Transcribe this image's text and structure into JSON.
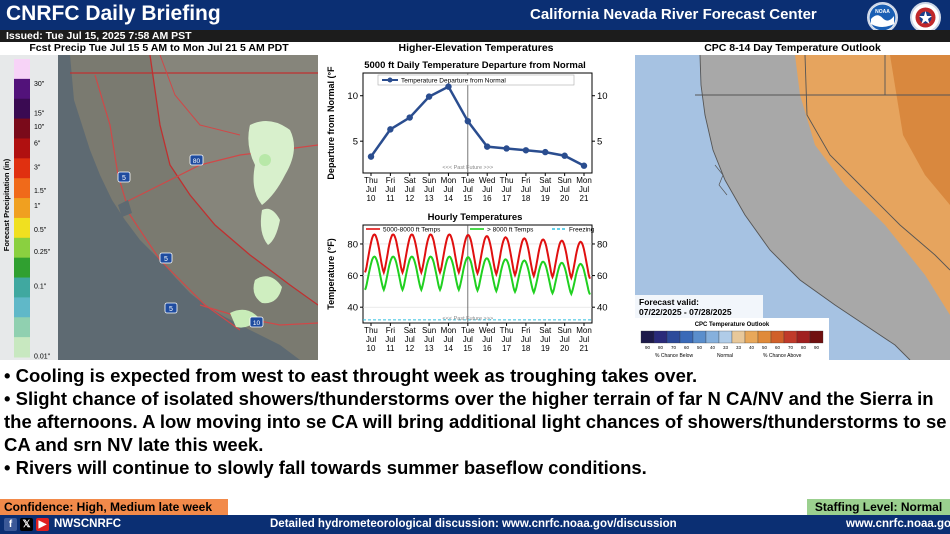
{
  "header": {
    "title": "CNRFC Daily Briefing",
    "org": "California Nevada River Forecast Center",
    "issued": "Issued: Tue Jul 15, 2025 7:58 AM PST",
    "noaa_logo_text": "NOAA"
  },
  "panels": {
    "precip_title": "Fcst Precip Tue Jul 15 5 AM to Mon Jul 21 5 AM PDT",
    "temps_title": "Higher-Elevation Temperatures",
    "cpc_title": "CPC 8-14 Day Temperature Outlook"
  },
  "precip_legend": {
    "axis_label": "Forecast Precipitation (in)",
    "ticks": [
      "30\"",
      "15\"",
      "10\"",
      "6\"",
      "3\"",
      "1.5\"",
      "1\"",
      "0.5\"",
      "0.25\"",
      "0.1\"",
      "0.01\""
    ],
    "colors": [
      "#f7d3f7",
      "#52127a",
      "#3a0a52",
      "#7a0a1a",
      "#b01010",
      "#e03010",
      "#f06a1a",
      "#f0a020",
      "#f0e020",
      "#8ad040",
      "#30a030",
      "#40a8a0",
      "#60b8c8",
      "#90d0b0",
      "#c8e8c0"
    ]
  },
  "highway_shields": [
    "5",
    "80",
    "5",
    "5",
    "10"
  ],
  "chart_data": [
    {
      "type": "line",
      "title": "5000 ft Daily Temperature Departure from Normal",
      "ylabel": "Departure from Normal (°F",
      "ylim": [
        1.5,
        12.5
      ],
      "yticks": [
        5,
        10
      ],
      "legend": "Temperature Departure from Normal",
      "annotation": "<<< Past   Future >>>",
      "categories": [
        "Thu Jul 10",
        "Fri Jul 11",
        "Sat Jul 12",
        "Sun Jul 13",
        "Mon Jul 14",
        "Tue Jul 15",
        "Wed Jul 16",
        "Thu Jul 17",
        "Fri Jul 18",
        "Sat Jul 19",
        "Sun Jul 20",
        "Mon Jul 21"
      ],
      "x_days": [
        "Thu",
        "Fri",
        "Sat",
        "Sun",
        "Mon",
        "Tue",
        "Wed",
        "Thu",
        "Fri",
        "Sat",
        "Sun",
        "Mon"
      ],
      "x_months": [
        "Jul",
        "Jul",
        "Jul",
        "Jul",
        "Jul",
        "Jul",
        "Jul",
        "Jul",
        "Jul",
        "Jul",
        "Jul",
        "Jul"
      ],
      "x_dates": [
        "10",
        "11",
        "12",
        "13",
        "14",
        "15",
        "16",
        "17",
        "18",
        "19",
        "20",
        "21"
      ],
      "values": [
        3.3,
        6.3,
        7.6,
        9.9,
        11.0,
        7.2,
        4.4,
        4.2,
        4.0,
        3.8,
        3.4,
        2.3
      ],
      "color": "#2a4d8f"
    },
    {
      "type": "line",
      "title": "Hourly Temperatures",
      "ylabel": "Temperature (°F)",
      "ylim": [
        30,
        92
      ],
      "yticks": [
        40,
        60,
        80
      ],
      "annotation": "<<< Past   Future >>>",
      "series": [
        {
          "name": "5000-8000 ft Temps",
          "color": "#e01010",
          "min": 62,
          "max": 86,
          "min_end": 58,
          "max_end": 81
        },
        {
          "name": "> 8000 ft Temps",
          "color": "#20d020",
          "min": 51,
          "max": 72,
          "min_end": 48,
          "max_end": 67
        },
        {
          "name": "Freezing",
          "color": "#30c0e0",
          "value": 32
        }
      ],
      "x_days": [
        "Thu",
        "Fri",
        "Sat",
        "Sun",
        "Mon",
        "Tue",
        "Wed",
        "Thu",
        "Fri",
        "Sat",
        "Sun",
        "Mon"
      ],
      "x_months": [
        "Jul",
        "Jul",
        "Jul",
        "Jul",
        "Jul",
        "Jul",
        "Jul",
        "Jul",
        "Jul",
        "Jul",
        "Jul",
        "Jul"
      ],
      "x_dates": [
        "10",
        "11",
        "12",
        "13",
        "14",
        "15",
        "16",
        "17",
        "18",
        "19",
        "20",
        "21"
      ]
    }
  ],
  "cpc": {
    "valid_label": "Forecast valid:",
    "valid_range": "07/22/2025 - 07/28/2025",
    "legend_title": "CPC Temperature Outlook",
    "legend_ticks": [
      "90",
      "80",
      "70",
      "60",
      "50",
      "40",
      "33",
      "33",
      "40",
      "50",
      "60",
      "70",
      "80",
      "90"
    ],
    "legend_colors": [
      "#1d1a4a",
      "#2a2a7a",
      "#2d4a9a",
      "#3a6ab8",
      "#5a8ecc",
      "#86b0dc",
      "#b0cce8",
      "#e8c89a",
      "#e8a85a",
      "#e08a3a",
      "#d0602a",
      "#c03a2a",
      "#a02020",
      "#701010"
    ],
    "below_label": "% Chance Below",
    "normal_label": "Normal",
    "above_label": "% Chance Above",
    "colors": {
      "below": "#a6c2e2",
      "normal": "#a8a8a8",
      "above": "#e6a45e",
      "above_high": "#d9883e"
    }
  },
  "bullets": [
    "• Cooling is expected from west to east throught week as troughing takes over.",
    "• Slight chance of isolated showers/thunderstorms over the higher terrain of far N CA/NV and the Sierra in the afternoons. A low moving into se CA will bring additional light chances of showers/thunderstorms to se CA and srn NV late this week.",
    "• Rivers will continue to slowly fall towards summer baseflow conditions."
  ],
  "confidence": "Confidence: High, Medium late week",
  "staffing": "Staffing Level: Normal",
  "footer": {
    "social_icons": [
      "facebook-icon",
      "x-icon",
      "youtube-icon"
    ],
    "handle": "NWSCNRFC",
    "discussion": "Detailed hydrometeorological discussion: www.cnrfc.noaa.gov/discussion",
    "site": "www.cnrfc.noaa.gov"
  }
}
